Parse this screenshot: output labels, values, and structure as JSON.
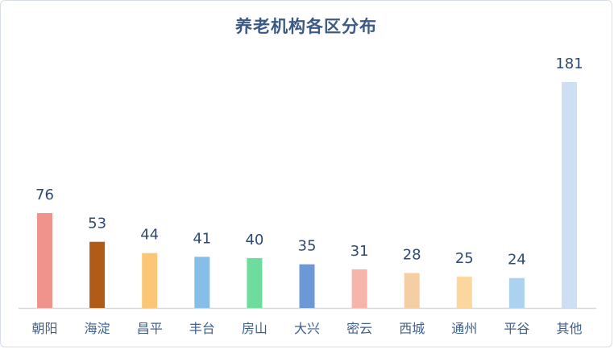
{
  "chart_data": {
    "type": "bar",
    "title": "养老机构各区分布",
    "categories": [
      "朝阳",
      "海淀",
      "昌平",
      "丰台",
      "房山",
      "大兴",
      "密云",
      "西城",
      "通州",
      "平谷",
      "其他"
    ],
    "values": [
      76,
      53,
      44,
      41,
      40,
      35,
      31,
      28,
      25,
      24,
      181
    ],
    "colors": [
      "#ef938c",
      "#b05b17",
      "#fbc776",
      "#85bfe8",
      "#6edc9c",
      "#6d98d6",
      "#f6b4aa",
      "#f6cea4",
      "#fbd69d",
      "#abd3f0",
      "#cfdff3"
    ],
    "ylim": [
      0,
      181
    ],
    "grid": false,
    "legend": "none",
    "data_labels": true
  }
}
